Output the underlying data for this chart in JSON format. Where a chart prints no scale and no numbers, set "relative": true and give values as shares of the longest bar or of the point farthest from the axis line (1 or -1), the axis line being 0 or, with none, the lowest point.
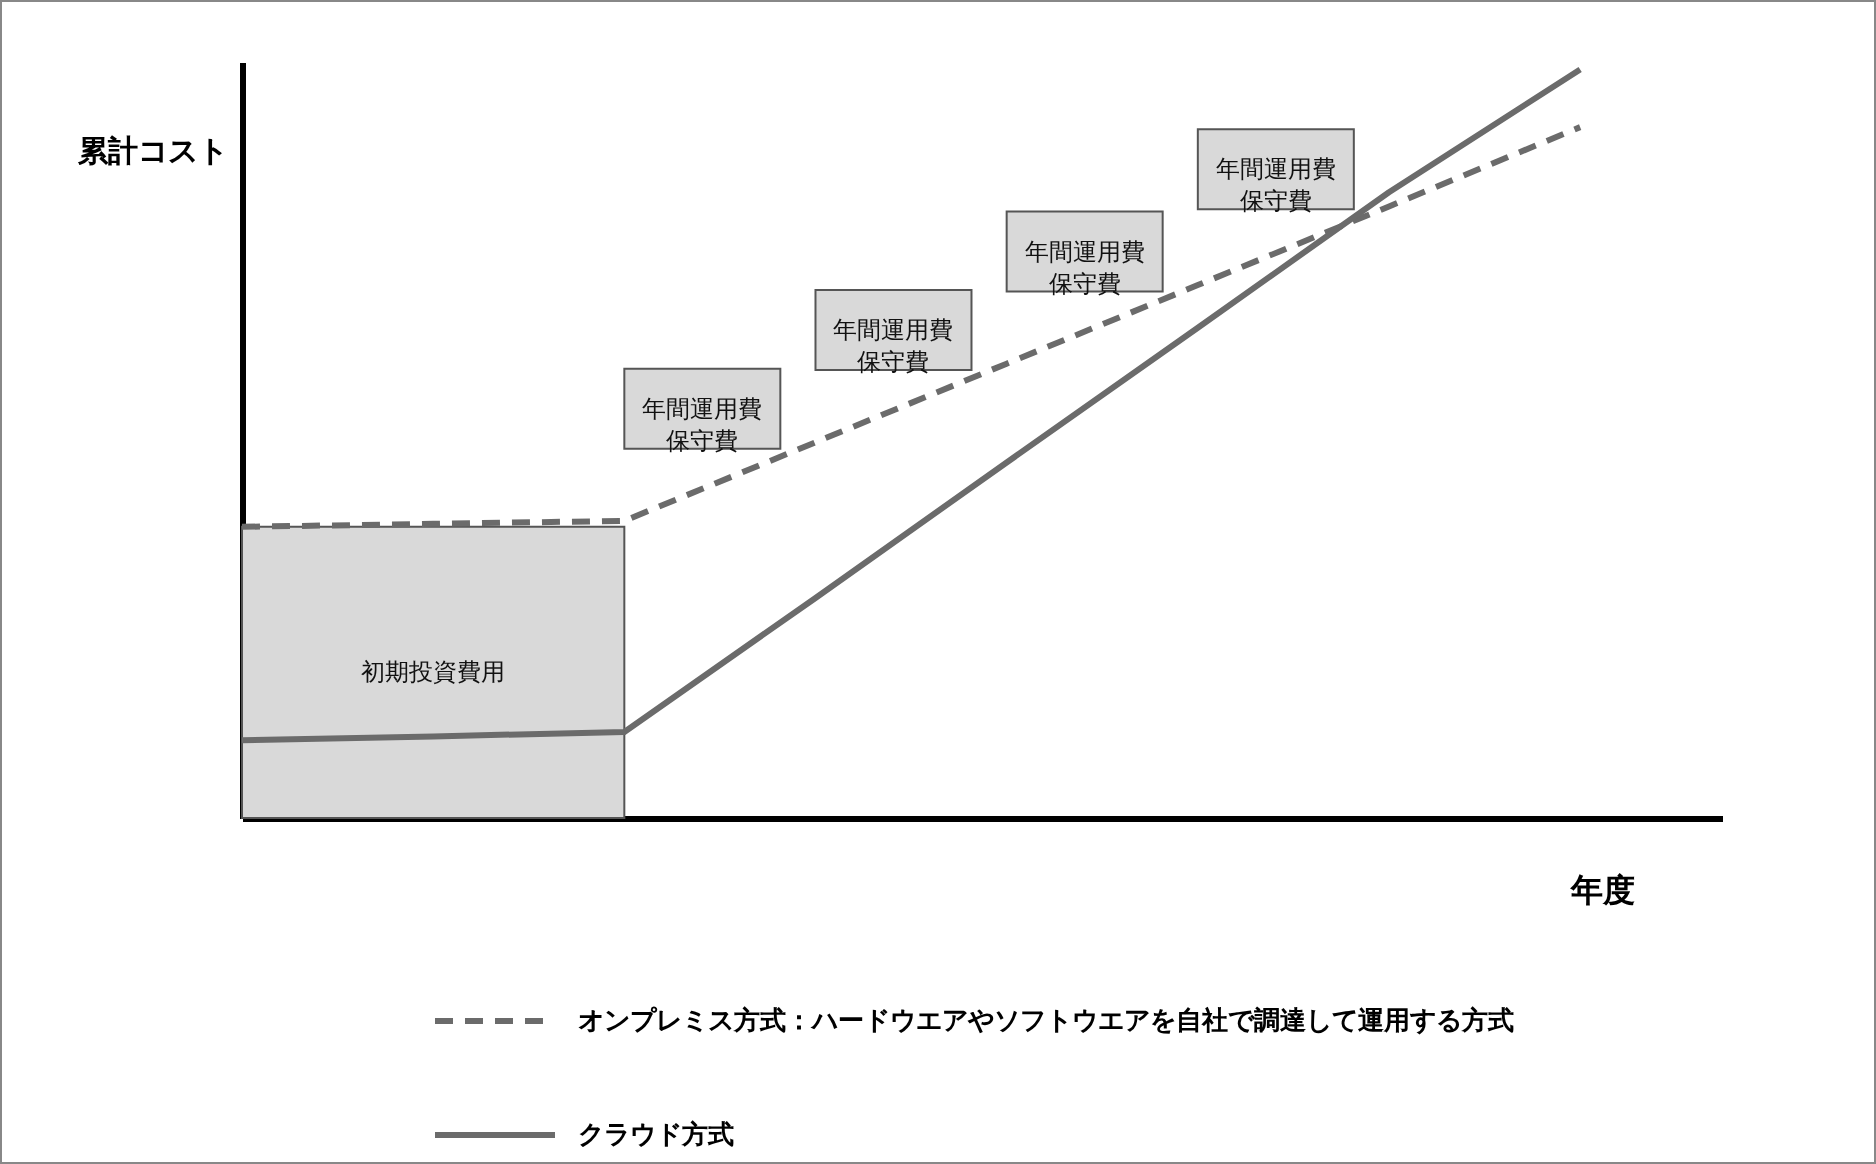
{
  "chart_data": {
    "type": "line",
    "relative": true,
    "xlabel": "年度",
    "ylabel": "累計コスト",
    "categories": [
      null,
      null,
      null,
      null,
      null,
      null,
      null,
      null
    ],
    "series": [
      {
        "name": "オンプレミス方式：ハードウエアやソフトウエアを自社で調達して運用する方式",
        "color": "#6b6b6b",
        "line_style": "dashed",
        "values": [
          0.389,
          0.393,
          0.397,
          0.502,
          0.607,
          0.712,
          0.817,
          0.923
        ]
      },
      {
        "name": "クラウド方式",
        "color": "#6b6b6b",
        "line_style": "solid",
        "values": [
          0.104,
          0.109,
          0.115,
          0.294,
          0.475,
          0.655,
          0.836,
          1.0
        ]
      }
    ],
    "annotations": [
      "初期投資費用",
      "年間運用費保守費",
      "年間運用費保守費",
      "年間運用費保守費",
      "年間運用費保守費"
    ],
    "legend": "bottom"
  }
}
